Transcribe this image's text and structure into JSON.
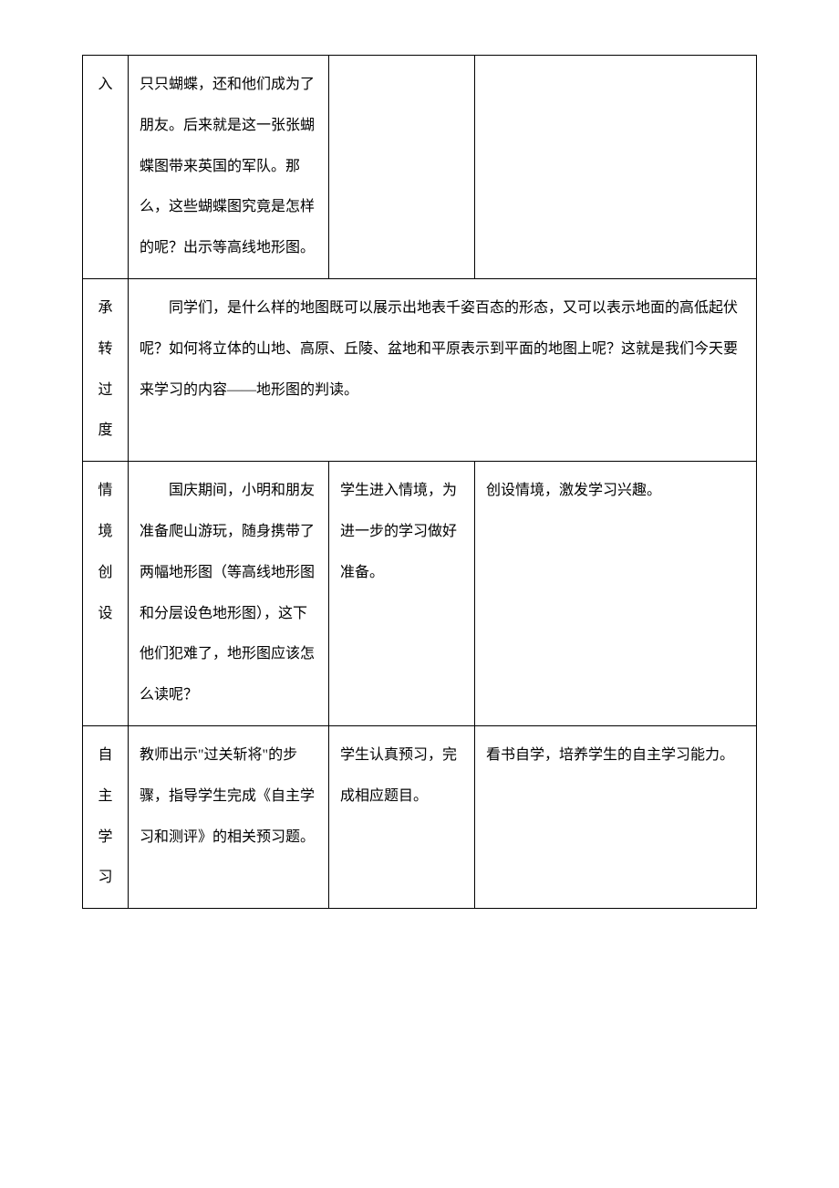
{
  "rows": [
    {
      "label": "入",
      "teacher": "只只蝴蝶，还和他们成为了朋友。后来就是这一张张蝴蝶图带来英国的军队。那么，这些蝴蝶图究竟是怎样的呢？出示等高线地形图。",
      "student": "",
      "purpose": ""
    },
    {
      "label_chars": [
        "承",
        "转",
        "过",
        "度"
      ],
      "merged_content": "同学们，是什么样的地图既可以展示出地表千姿百态的形态，又可以表示地面的高低起伏呢？如何将立体的山地、高原、丘陵、盆地和平原表示到平面的地图上呢？这就是我们今天要来学习的内容——地形图的判读。"
    },
    {
      "label_chars": [
        "情",
        "境",
        "创",
        "设"
      ],
      "teacher": "国庆期间，小明和朋友准备爬山游玩，随身携带了两幅地形图（等高线地形图和分层设色地形图），这下他们犯难了，地形图应该怎么读呢？",
      "student": "学生进入情境，为进一步的学习做好准备。",
      "purpose": "创设情境，激发学习兴趣。"
    },
    {
      "label_chars": [
        "自",
        "主",
        "学",
        "习"
      ],
      "teacher": "教师出示\"过关斩将\"的步骤，指导学生完成《自主学习和测评》的相关预习题。",
      "student": "学生认真预习，完成相应题目。",
      "purpose": "看书自学，培养学生的自主学习能力。"
    }
  ]
}
